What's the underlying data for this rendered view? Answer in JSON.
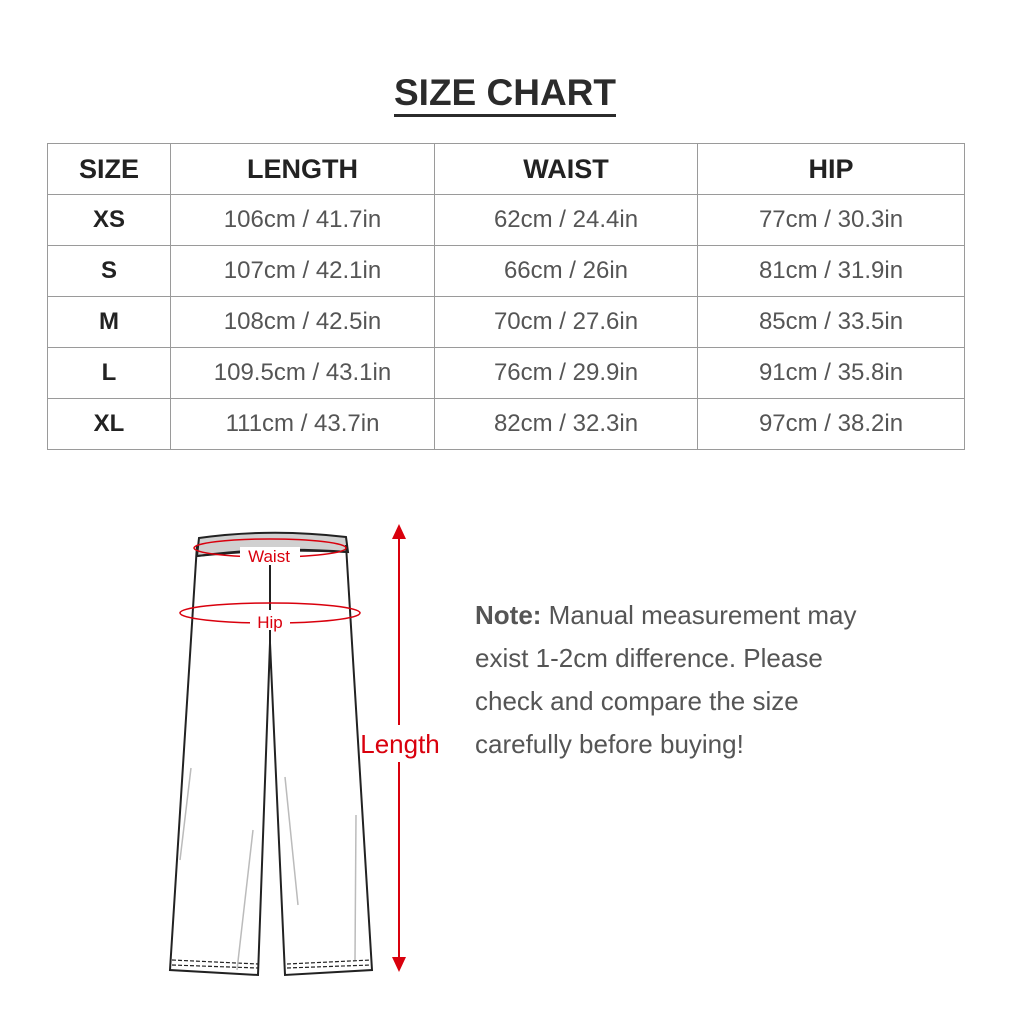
{
  "title": "SIZE CHART",
  "table": {
    "headers": [
      "SIZE",
      "LENGTH",
      "WAIST",
      "HIP"
    ],
    "rows": [
      [
        "XS",
        "106cm / 41.7in",
        "62cm / 24.4in",
        "77cm / 30.3in"
      ],
      [
        "S",
        "107cm / 42.1in",
        "66cm / 26in",
        "81cm / 31.9in"
      ],
      [
        "M",
        "108cm / 42.5in",
        "70cm / 27.6in",
        "85cm / 33.5in"
      ],
      [
        "L",
        "109.5cm / 43.1in",
        "76cm / 29.9in",
        "91cm / 35.8in"
      ],
      [
        "XL",
        "111cm / 43.7in",
        "82cm / 32.3in",
        "97cm / 38.2in"
      ]
    ]
  },
  "diagram": {
    "waist_label": "Waist",
    "hip_label": "Hip",
    "length_label": "Length",
    "accent_color": "#d9000d"
  },
  "note": {
    "label": "Note:",
    "text": " Manual measurement may exist 1-2cm difference. Please check and compare the size carefully before buying!"
  }
}
